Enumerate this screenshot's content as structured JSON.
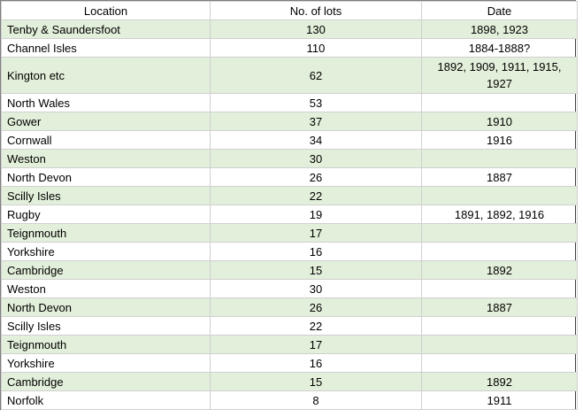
{
  "table": {
    "headers": [
      "Location",
      "No. of lots",
      "Date"
    ],
    "rows": [
      {
        "location": "Tenby & Saundersfoot",
        "lots": "130",
        "date": "1898, 1923"
      },
      {
        "location": "Channel Isles",
        "lots": "110",
        "date": "1884-1888?"
      },
      {
        "location": "Kington etc",
        "lots": "62",
        "date": "1892, 1909, 1911, 1915, 1927"
      },
      {
        "location": "North Wales",
        "lots": "53",
        "date": ""
      },
      {
        "location": "Gower",
        "lots": "37",
        "date": "1910"
      },
      {
        "location": "Cornwall",
        "lots": "34",
        "date": "1916"
      },
      {
        "location": "Weston",
        "lots": "30",
        "date": ""
      },
      {
        "location": "North Devon",
        "lots": "26",
        "date": "1887"
      },
      {
        "location": "Scilly Isles",
        "lots": "22",
        "date": ""
      },
      {
        "location": "Rugby",
        "lots": "19",
        "date": "1891, 1892, 1916"
      },
      {
        "location": "Teignmouth",
        "lots": "17",
        "date": ""
      },
      {
        "location": "Yorkshire",
        "lots": "16",
        "date": ""
      },
      {
        "location": "Cambridge",
        "lots": "15",
        "date": "1892"
      },
      {
        "location": "Weston",
        "lots": "30",
        "date": ""
      },
      {
        "location": "North Devon",
        "lots": "26",
        "date": "1887"
      },
      {
        "location": "Scilly Isles",
        "lots": "22",
        "date": ""
      },
      {
        "location": "Teignmouth",
        "lots": "17",
        "date": ""
      },
      {
        "location": "Yorkshire",
        "lots": "16",
        "date": ""
      },
      {
        "location": "Cambridge",
        "lots": "15",
        "date": "1892"
      },
      {
        "location": "Norfolk",
        "lots": "8",
        "date": "1911"
      }
    ]
  },
  "colors": {
    "band_green": "#e2efda",
    "band_white": "#ffffff",
    "grid": "#d0d0d0"
  }
}
